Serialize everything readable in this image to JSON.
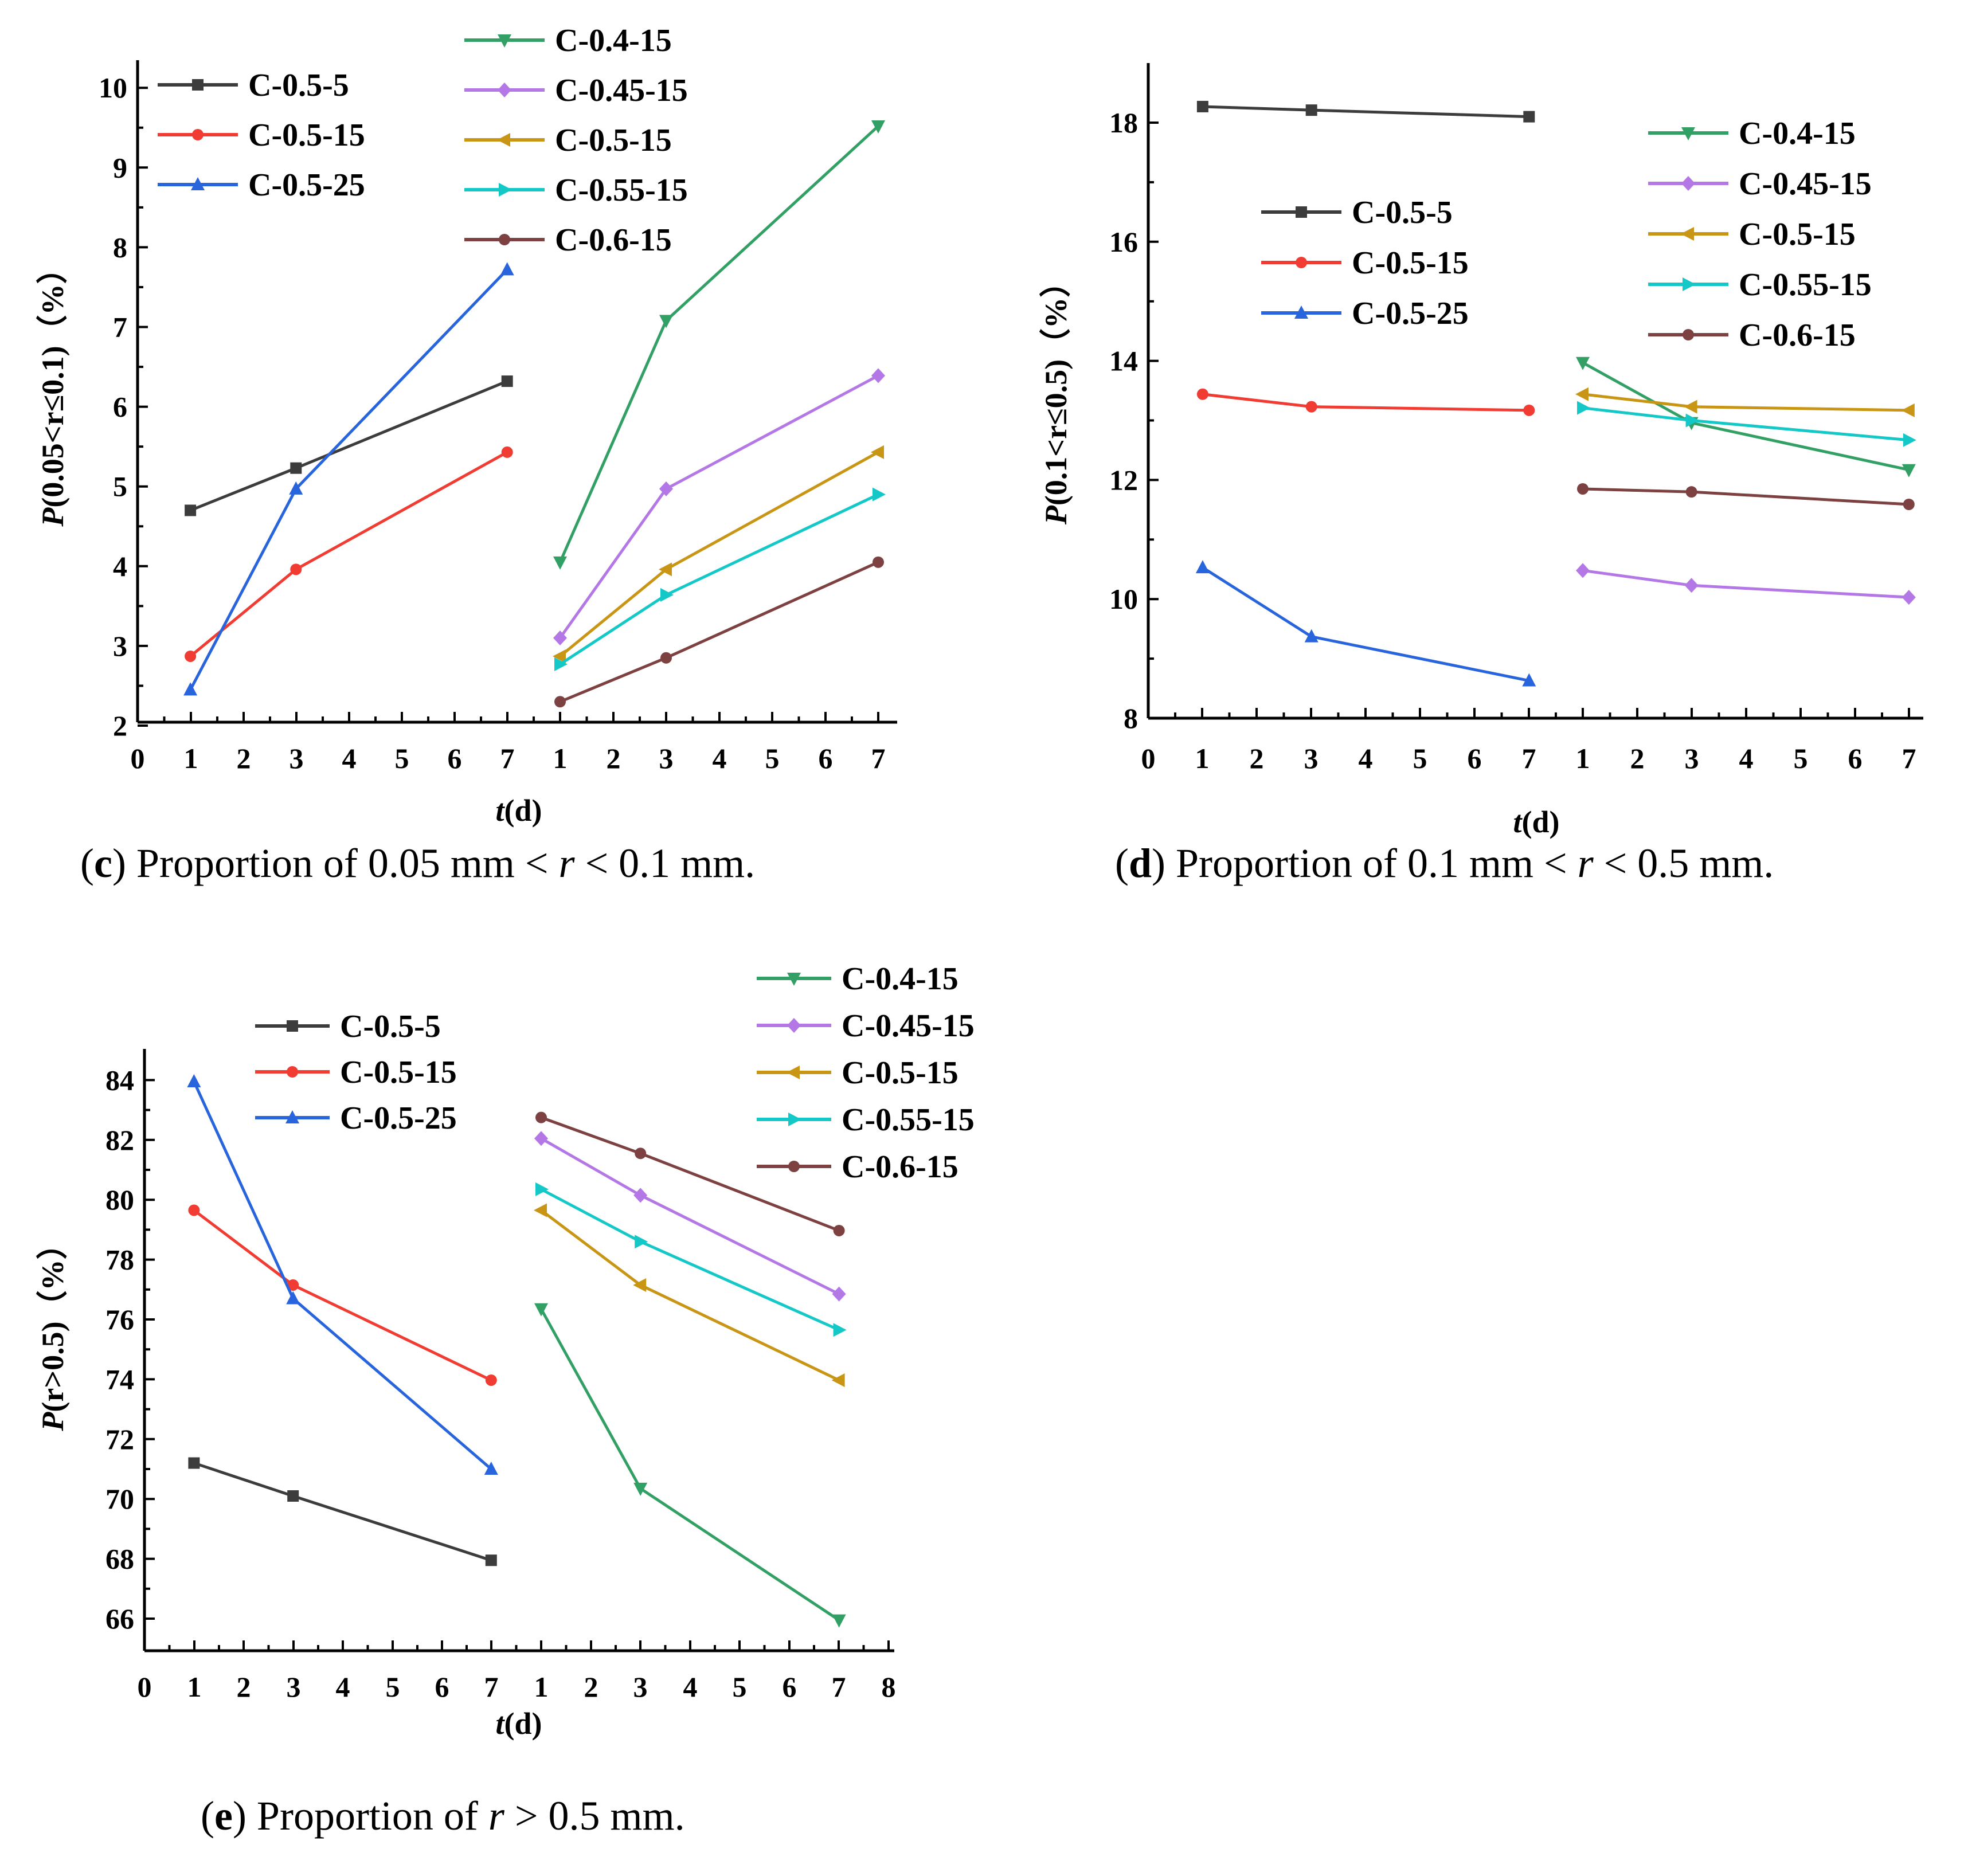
{
  "colors": {
    "C-0.5-5": "#3c3c3c",
    "C-0.5-15": "#f03c32",
    "C-0.5-25": "#2864dc",
    "C-0.4-15": "#32a064",
    "C-0.45-15": "#b478e6",
    "C-0.5-15b": "#c89614",
    "C-0.55-15": "#14c8c8",
    "C-0.6-15": "#7d4141"
  },
  "chart_data": [
    {
      "id": "c",
      "type": "line",
      "caption": {
        "letter": "c",
        "text": ") Proportion of 0.05 mm < ",
        "var": "r",
        "tail": "  < 0.1 mm."
      },
      "ylabel": {
        "pre": "P",
        "main": "(0.05<r≤0.1)（%）"
      },
      "xlabel": {
        "pre": "t",
        "main": "(d)"
      },
      "ylim": [
        2,
        10
      ],
      "yticks": [
        "2",
        "3",
        "4",
        "5",
        "6",
        "7",
        "8",
        "9",
        "10"
      ],
      "xticks": [
        "0",
        "1",
        "2",
        "3",
        "4",
        "5",
        "6",
        "7",
        "1",
        "2",
        "3",
        "4",
        "5",
        "6",
        "7"
      ],
      "groups": [
        {
          "series": [
            {
              "name": "C-0.5-5",
              "x": [
                1,
                3,
                7
              ],
              "values": [
                4.7,
                5.23,
                6.32
              ]
            },
            {
              "name": "C-0.5-15",
              "x": [
                1,
                3,
                7
              ],
              "values": [
                2.87,
                3.96,
                5.43
              ]
            },
            {
              "name": "C-0.5-25",
              "x": [
                1,
                3,
                7
              ],
              "values": [
                2.45,
                4.97,
                7.72
              ]
            }
          ]
        },
        {
          "series": [
            {
              "name": "C-0.4-15",
              "x": [
                1,
                3,
                7
              ],
              "values": [
                4.05,
                7.08,
                9.52
              ]
            },
            {
              "name": "C-0.45-15",
              "x": [
                1,
                3,
                7
              ],
              "values": [
                3.1,
                4.97,
                6.39
              ]
            },
            {
              "name": "C-0.5-15",
              "x": [
                1,
                3,
                7
              ],
              "values": [
                2.87,
                3.96,
                5.43
              ]
            },
            {
              "name": "C-0.55-15",
              "x": [
                1,
                3,
                7
              ],
              "values": [
                2.77,
                3.64,
                4.9
              ]
            },
            {
              "name": "C-0.6-15",
              "x": [
                1,
                3,
                7
              ],
              "values": [
                2.3,
                2.85,
                4.05
              ]
            }
          ]
        }
      ]
    },
    {
      "id": "d",
      "type": "line",
      "caption": {
        "letter": "d",
        "text": ") Proportion of 0.1 mm < ",
        "var": "r",
        "tail": "  < 0.5 mm."
      },
      "ylabel": {
        "pre": "P",
        "main": "(0.1<r≤0.5)（%）"
      },
      "xlabel": {
        "pre": "t",
        "main": "(d)"
      },
      "ylim": [
        8,
        19
      ],
      "yticks": [
        "8",
        "10",
        "12",
        "14",
        "16",
        "18"
      ],
      "xticks": [
        "0",
        "1",
        "2",
        "3",
        "4",
        "5",
        "6",
        "7",
        "1",
        "2",
        "3",
        "4",
        "5",
        "6",
        "7"
      ],
      "groups": [
        {
          "series": [
            {
              "name": "C-0.5-5",
              "x": [
                1,
                3,
                7
              ],
              "values": [
                18.27,
                18.21,
                18.1
              ]
            },
            {
              "name": "C-0.5-15",
              "x": [
                1,
                3,
                7
              ],
              "values": [
                13.44,
                13.23,
                13.17
              ]
            },
            {
              "name": "C-0.5-25",
              "x": [
                1,
                3,
                7
              ],
              "values": [
                10.53,
                9.37,
                8.63
              ]
            }
          ]
        },
        {
          "series": [
            {
              "name": "C-0.4-15",
              "x": [
                1,
                3,
                7
              ],
              "values": [
                13.97,
                12.96,
                12.17
              ]
            },
            {
              "name": "C-0.45-15",
              "x": [
                1,
                3,
                7
              ],
              "values": [
                10.48,
                10.23,
                10.03
              ]
            },
            {
              "name": "C-0.5-15",
              "x": [
                1,
                3,
                7
              ],
              "values": [
                13.44,
                13.23,
                13.17
              ]
            },
            {
              "name": "C-0.55-15",
              "x": [
                1,
                3,
                7
              ],
              "values": [
                13.21,
                13.0,
                12.67
              ]
            },
            {
              "name": "C-0.6-15",
              "x": [
                1,
                3,
                7
              ],
              "values": [
                11.85,
                11.8,
                11.59
              ]
            }
          ]
        }
      ]
    },
    {
      "id": "e",
      "type": "line",
      "caption": {
        "letter": "e",
        "text": ") Proportion of ",
        "var": "r",
        "tail": "  > 0.5 mm."
      },
      "ylabel": {
        "pre": "P",
        "main": "(r>0.5)（%）"
      },
      "xlabel": {
        "pre": "t",
        "main": "(d)"
      },
      "ylim": [
        65,
        85
      ],
      "yticks": [
        "66",
        "68",
        "70",
        "72",
        "74",
        "76",
        "78",
        "80",
        "82",
        "84"
      ],
      "xticks": [
        "0",
        "1",
        "2",
        "3",
        "4",
        "5",
        "6",
        "7",
        "1",
        "2",
        "3",
        "4",
        "5",
        "6",
        "7",
        "8"
      ],
      "groups": [
        {
          "series": [
            {
              "name": "C-0.5-5",
              "x": [
                1,
                3,
                7
              ],
              "values": [
                71.2,
                70.1,
                67.95
              ]
            },
            {
              "name": "C-0.5-15",
              "x": [
                1,
                3,
                7
              ],
              "values": [
                79.65,
                77.15,
                73.97
              ]
            },
            {
              "name": "C-0.5-25",
              "x": [
                1,
                3,
                7
              ],
              "values": [
                83.95,
                76.7,
                71.0
              ]
            }
          ]
        },
        {
          "series": [
            {
              "name": "C-0.4-15",
              "x": [
                1,
                3,
                7
              ],
              "values": [
                76.35,
                70.35,
                65.95
              ]
            },
            {
              "name": "C-0.45-15",
              "x": [
                1,
                3,
                7
              ],
              "values": [
                82.05,
                80.15,
                76.85
              ]
            },
            {
              "name": "C-0.5-15",
              "x": [
                1,
                3,
                7
              ],
              "values": [
                79.65,
                77.15,
                73.97
              ]
            },
            {
              "name": "C-0.55-15",
              "x": [
                1,
                3,
                7
              ],
              "values": [
                80.35,
                78.6,
                75.65
              ]
            },
            {
              "name": "C-0.6-15",
              "x": [
                1,
                3,
                7
              ],
              "values": [
                82.75,
                81.55,
                78.97
              ]
            }
          ]
        }
      ]
    }
  ]
}
